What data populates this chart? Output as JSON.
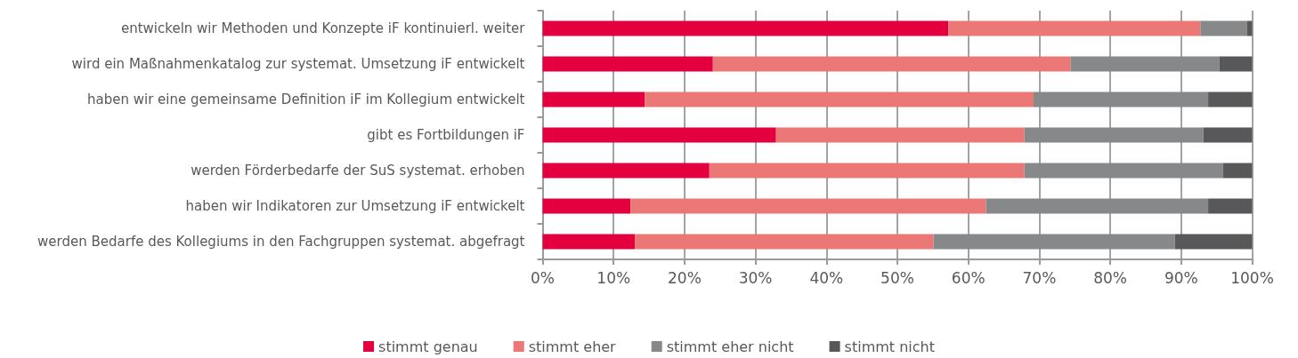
{
  "chart_data": {
    "type": "bar",
    "orientation": "horizontal",
    "stacked": true,
    "categories": [
      "entwickeln wir Methoden und Konzepte iF kontinuierl. weiter",
      "wird ein Maßnahmenkatalog zur systemat. Umsetzung iF entwickelt",
      "haben wir eine gemeinsame Definition iF im Kollegium entwickelt",
      "gibt es Fortbildungen iF",
      "werden Förderbedarfe der SuS systemat. erhoben",
      "haben wir Indikatoren zur Umsetzung iF entwickelt",
      "werden Bedarfe des Kollegiums in den Fachgruppen systemat. abgefragt"
    ],
    "series": [
      {
        "name": "stimmt genau",
        "color": "#e4003f",
        "values": [
          57.2,
          24.0,
          14.4,
          32.9,
          23.5,
          12.4,
          13.0
        ]
      },
      {
        "name": "stimmt eher",
        "color": "#eb7777",
        "values": [
          35.5,
          50.4,
          54.8,
          35.0,
          44.4,
          50.1,
          42.1
        ]
      },
      {
        "name": "stimmt eher nicht",
        "color": "#87888a",
        "values": [
          6.6,
          21.0,
          24.6,
          25.2,
          28.0,
          31.3,
          34.0
        ]
      },
      {
        "name": "stimmt nicht",
        "color": "#58585a",
        "values": [
          0.7,
          4.6,
          6.2,
          6.9,
          4.1,
          6.2,
          10.9
        ]
      }
    ],
    "xlim": [
      0,
      100
    ],
    "xticks": [
      {
        "value": 0,
        "label": "0%"
      },
      {
        "value": 10,
        "label": "10%"
      },
      {
        "value": 20,
        "label": "20%"
      },
      {
        "value": 30,
        "label": "30%"
      },
      {
        "value": 40,
        "label": "40%"
      },
      {
        "value": 50,
        "label": "50%"
      },
      {
        "value": 60,
        "label": "60%"
      },
      {
        "value": 70,
        "label": "70%"
      },
      {
        "value": 80,
        "label": "80%"
      },
      {
        "value": 90,
        "label": "90%"
      },
      {
        "value": 100,
        "label": "100%"
      }
    ],
    "grid": "x",
    "legend": "bottom"
  }
}
